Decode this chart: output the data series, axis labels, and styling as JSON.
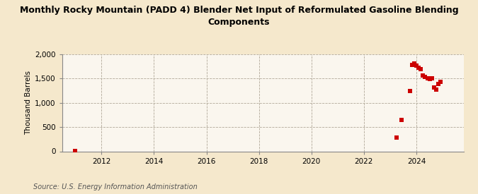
{
  "title": "Monthly Rocky Mountain (PADD 4) Blender Net Input of Reformulated Gasoline Blending\nComponents",
  "ylabel": "Thousand Barrels",
  "source": "Source: U.S. Energy Information Administration",
  "background_color": "#f5e8cc",
  "plot_bg_color": "#faf6ee",
  "xlim": [
    2010.5,
    2025.8
  ],
  "ylim": [
    0,
    2000
  ],
  "yticks": [
    0,
    500,
    1000,
    1500,
    2000
  ],
  "xticks": [
    2012,
    2014,
    2016,
    2018,
    2020,
    2022,
    2024
  ],
  "marker_color": "#cc0000",
  "marker_size": 4,
  "data_points": [
    [
      2011.0,
      8
    ],
    [
      2023.25,
      290
    ],
    [
      2023.42,
      650
    ],
    [
      2023.75,
      1250
    ],
    [
      2023.83,
      1780
    ],
    [
      2023.92,
      1810
    ],
    [
      2024.0,
      1760
    ],
    [
      2024.08,
      1720
    ],
    [
      2024.17,
      1690
    ],
    [
      2024.25,
      1570
    ],
    [
      2024.33,
      1540
    ],
    [
      2024.42,
      1500
    ],
    [
      2024.5,
      1490
    ],
    [
      2024.58,
      1510
    ],
    [
      2024.67,
      1310
    ],
    [
      2024.75,
      1275
    ],
    [
      2024.83,
      1390
    ],
    [
      2024.92,
      1430
    ]
  ]
}
